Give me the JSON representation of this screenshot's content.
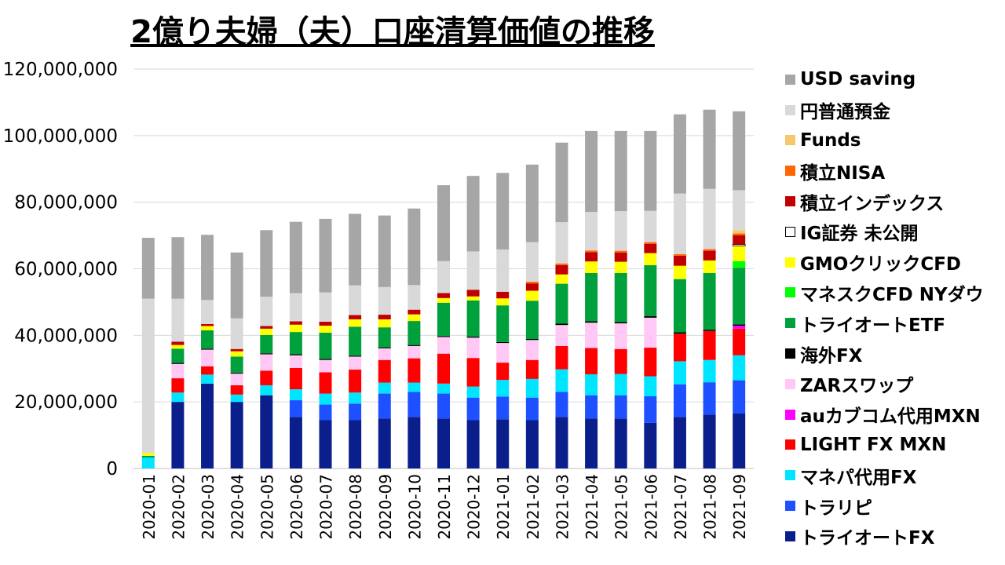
{
  "chart_data": {
    "type": "bar",
    "stacked": true,
    "title": "2億り夫婦（夫）口座清算価値の推移",
    "xlabel": "",
    "ylabel": "",
    "ylim": [
      0,
      120000000
    ],
    "yticks": [
      0,
      20000000,
      40000000,
      60000000,
      80000000,
      100000000,
      120000000
    ],
    "ytick_labels": [
      "0",
      "20,000,000",
      "40,000,000",
      "60,000,000",
      "80,000,000",
      "100,000,000",
      "120,000,000"
    ],
    "grid": true,
    "legend_position": "right",
    "categories": [
      "2020-01",
      "2020-02",
      "2020-03",
      "2020-04",
      "2020-05",
      "2020-06",
      "2020-07",
      "2020-08",
      "2020-09",
      "2020-10",
      "2020-11",
      "2020-12",
      "2021-01",
      "2021-02",
      "2021-03",
      "2021-04",
      "2021-05",
      "2021-06",
      "2021-07",
      "2021-08",
      "2021-09"
    ],
    "series": [
      {
        "name": "トライオートFX",
        "color": "#0a1e8c",
        "values": [
          0,
          20000000,
          25500000,
          20000000,
          22000000,
          15500000,
          14500000,
          14500000,
          15000000,
          15500000,
          15000000,
          14500000,
          14800000,
          14500000,
          15500000,
          15000000,
          15000000,
          13700000,
          15500000,
          16200000,
          16500000
        ]
      },
      {
        "name": "トラリピ",
        "color": "#1e50ff",
        "values": [
          0,
          0,
          0,
          0,
          0,
          5000000,
          4700000,
          5000000,
          7500000,
          7500000,
          7500000,
          6800000,
          6800000,
          6800000,
          7500000,
          7000000,
          7000000,
          8000000,
          9800000,
          9700000,
          10000000
        ]
      },
      {
        "name": "マネパ代用FX",
        "color": "#00e5ff",
        "values": [
          3300000,
          2800000,
          2700000,
          2200000,
          3000000,
          3300000,
          3300000,
          3300000,
          3300000,
          2800000,
          3000000,
          3300000,
          5000000,
          5600000,
          6800000,
          6300000,
          6400000,
          6000000,
          6900000,
          6700000,
          7500000
        ]
      },
      {
        "name": "LIGHT FX MXN",
        "color": "#ff0000",
        "values": [
          0,
          4300000,
          2500000,
          2800000,
          4400000,
          6400000,
          6400000,
          6900000,
          6800000,
          7300000,
          9000000,
          8600000,
          5200000,
          5700000,
          7000000,
          7900000,
          7500000,
          8600000,
          8300000,
          8700000,
          8000000
        ]
      },
      {
        "name": "auカブコム代用MXN",
        "color": "#ff00ff",
        "values": [
          0,
          0,
          0,
          0,
          0,
          0,
          0,
          0,
          0,
          0,
          0,
          0,
          0,
          0,
          0,
          0,
          0,
          0,
          0,
          0,
          900000
        ]
      },
      {
        "name": "ZARスワップ",
        "color": "#ffc8f5",
        "values": [
          0,
          4300000,
          5000000,
          3500000,
          4900000,
          3800000,
          3700000,
          3900000,
          3500000,
          3700000,
          5000000,
          6100000,
          5900000,
          6000000,
          6300000,
          7600000,
          7700000,
          9000000,
          0,
          0,
          0
        ]
      },
      {
        "name": "海外FX",
        "color": "#000000",
        "values": [
          0,
          300000,
          300000,
          300000,
          300000,
          300000,
          300000,
          300000,
          300000,
          300000,
          300000,
          300000,
          300000,
          300000,
          400000,
          400000,
          400000,
          500000,
          400000,
          400000,
          400000
        ]
      },
      {
        "name": "トライオートETF",
        "color": "#00a03c",
        "values": [
          500000,
          4300000,
          5500000,
          4800000,
          5500000,
          6700000,
          7900000,
          8700000,
          6000000,
          7200000,
          10000000,
          10900000,
          11000000,
          11500000,
          12000000,
          14500000,
          14700000,
          15300000,
          16000000,
          17000000,
          17000000
        ]
      },
      {
        "name": "マネスクCFD NYダウ",
        "color": "#00ff00",
        "values": [
          0,
          0,
          0,
          0,
          0,
          0,
          0,
          0,
          0,
          0,
          0,
          0,
          0,
          0,
          0,
          0,
          0,
          0,
          0,
          0,
          2000000
        ]
      },
      {
        "name": "GMOクリックCFD",
        "color": "#ffff00",
        "values": [
          800000,
          1100000,
          1300000,
          1600000,
          1900000,
          2200000,
          2100000,
          2200000,
          2400000,
          2000000,
          1400000,
          1200000,
          2100000,
          3000000,
          2800000,
          3500000,
          3400000,
          3600000,
          4000000,
          3800000,
          4600000
        ]
      },
      {
        "name": "IG証券 未公開",
        "color": "#ffffff",
        "border": "#000000",
        "values": [
          0,
          0,
          0,
          0,
          0,
          0,
          0,
          0,
          0,
          0,
          0,
          0,
          0,
          0,
          0,
          0,
          0,
          0,
          0,
          0,
          400000
        ]
      },
      {
        "name": "積立インデックス",
        "color": "#c00000",
        "values": [
          0,
          1000000,
          600000,
          700000,
          800000,
          1000000,
          1200000,
          1300000,
          1400000,
          1400000,
          1500000,
          2000000,
          2000000,
          2200000,
          2800000,
          2800000,
          2800000,
          2800000,
          3000000,
          2900000,
          2800000
        ]
      },
      {
        "name": "積立NISA",
        "color": "#ff6600",
        "values": [
          0,
          0,
          0,
          0,
          0,
          0,
          0,
          0,
          0,
          0,
          0,
          0,
          0,
          500000,
          500000,
          500000,
          500000,
          500000,
          500000,
          500000,
          500000
        ]
      },
      {
        "name": "Funds",
        "color": "#f5c86e",
        "values": [
          0,
          0,
          0,
          0,
          0,
          0,
          0,
          0,
          0,
          0,
          0,
          0,
          0,
          0,
          0,
          0,
          0,
          0,
          0,
          0,
          1000000
        ]
      },
      {
        "name": "円普通預金",
        "color": "#d9d9d9",
        "values": [
          46400000,
          12900000,
          7200000,
          9200000,
          8800000,
          8500000,
          8800000,
          8900000,
          8300000,
          7400000,
          9600000,
          11500000,
          12700000,
          11900000,
          12400000,
          11600000,
          11900000,
          9400000,
          18200000,
          18100000,
          12000000
        ]
      },
      {
        "name": "USD saving",
        "color": "#a6a6a6",
        "values": [
          18300000,
          18500000,
          19600000,
          19800000,
          20000000,
          21400000,
          22100000,
          21500000,
          21500000,
          23000000,
          22800000,
          22700000,
          23000000,
          23300000,
          23900000,
          24300000,
          24100000,
          24000000,
          23800000,
          23800000,
          23700000
        ]
      }
    ]
  }
}
